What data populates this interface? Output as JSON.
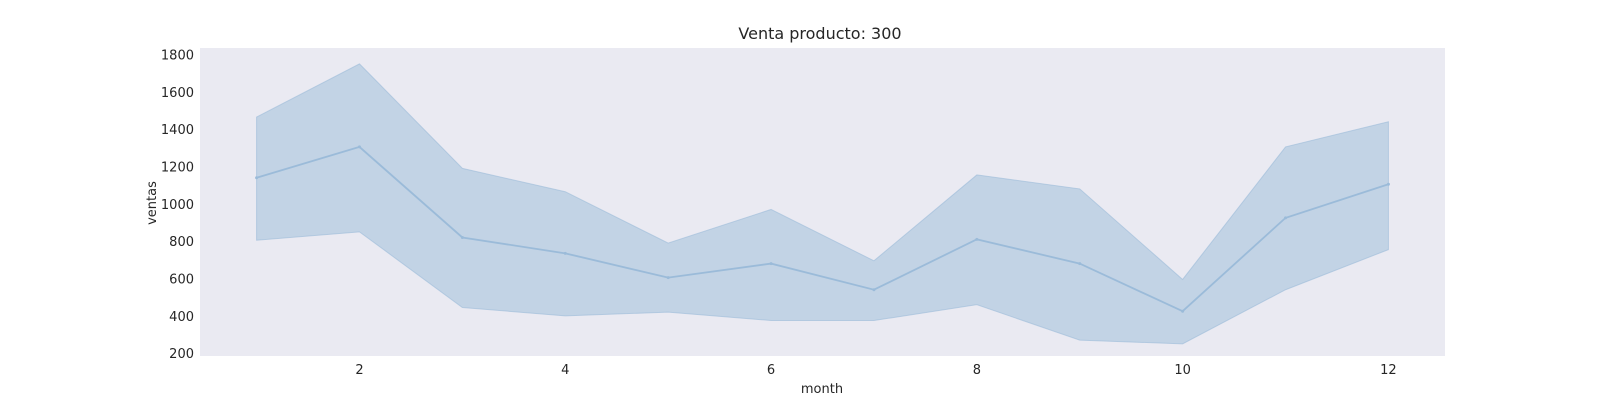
{
  "chart_data": {
    "type": "line",
    "title": "Venta producto: 300",
    "xlabel": "month",
    "ylabel": "ventas",
    "x": [
      1,
      2,
      3,
      4,
      5,
      6,
      7,
      8,
      9,
      10,
      11,
      12
    ],
    "series": [
      {
        "values": [
          1140,
          1305,
          820,
          735,
          605,
          680,
          540,
          810,
          680,
          425,
          925,
          1105
        ],
        "upper": [
          1465,
          1750,
          1190,
          1065,
          790,
          970,
          695,
          1155,
          1080,
          595,
          1305,
          1440
        ],
        "lower": [
          805,
          850,
          445,
          400,
          420,
          375,
          375,
          460,
          270,
          250,
          540,
          755
        ]
      }
    ],
    "xticks": [
      2,
      4,
      6,
      8,
      10,
      12
    ],
    "yticks": [
      200,
      400,
      600,
      800,
      1000,
      1200,
      1400,
      1600,
      1800
    ],
    "xlim": [
      0.45,
      12.55
    ],
    "ylim": [
      185,
      1835
    ],
    "grid": false,
    "colors": {
      "plot_background": "#eaeaf2",
      "line": "#9bbbd9",
      "band": "#c2d3e5"
    }
  }
}
